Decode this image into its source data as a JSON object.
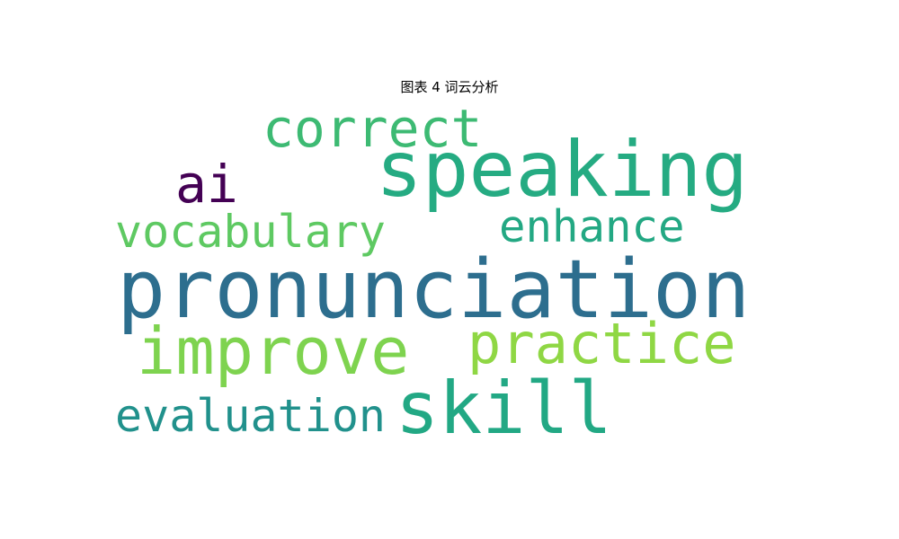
{
  "title": "图表 4 词云分析",
  "words": [
    {
      "text": "speaking",
      "color": "#25AB82"
    },
    {
      "text": "correct",
      "color": "#3DBA73"
    },
    {
      "text": "ai",
      "color": "#440154"
    },
    {
      "text": "enhance",
      "color": "#23A883"
    },
    {
      "text": "vocabulary",
      "color": "#5EC962"
    },
    {
      "text": "pronunciation",
      "color": "#2D6E8E"
    },
    {
      "text": "improve",
      "color": "#7ED34F"
    },
    {
      "text": "practice",
      "color": "#8FD744"
    },
    {
      "text": "skill",
      "color": "#22A884"
    },
    {
      "text": "evaluation",
      "color": "#21918C"
    }
  ]
}
